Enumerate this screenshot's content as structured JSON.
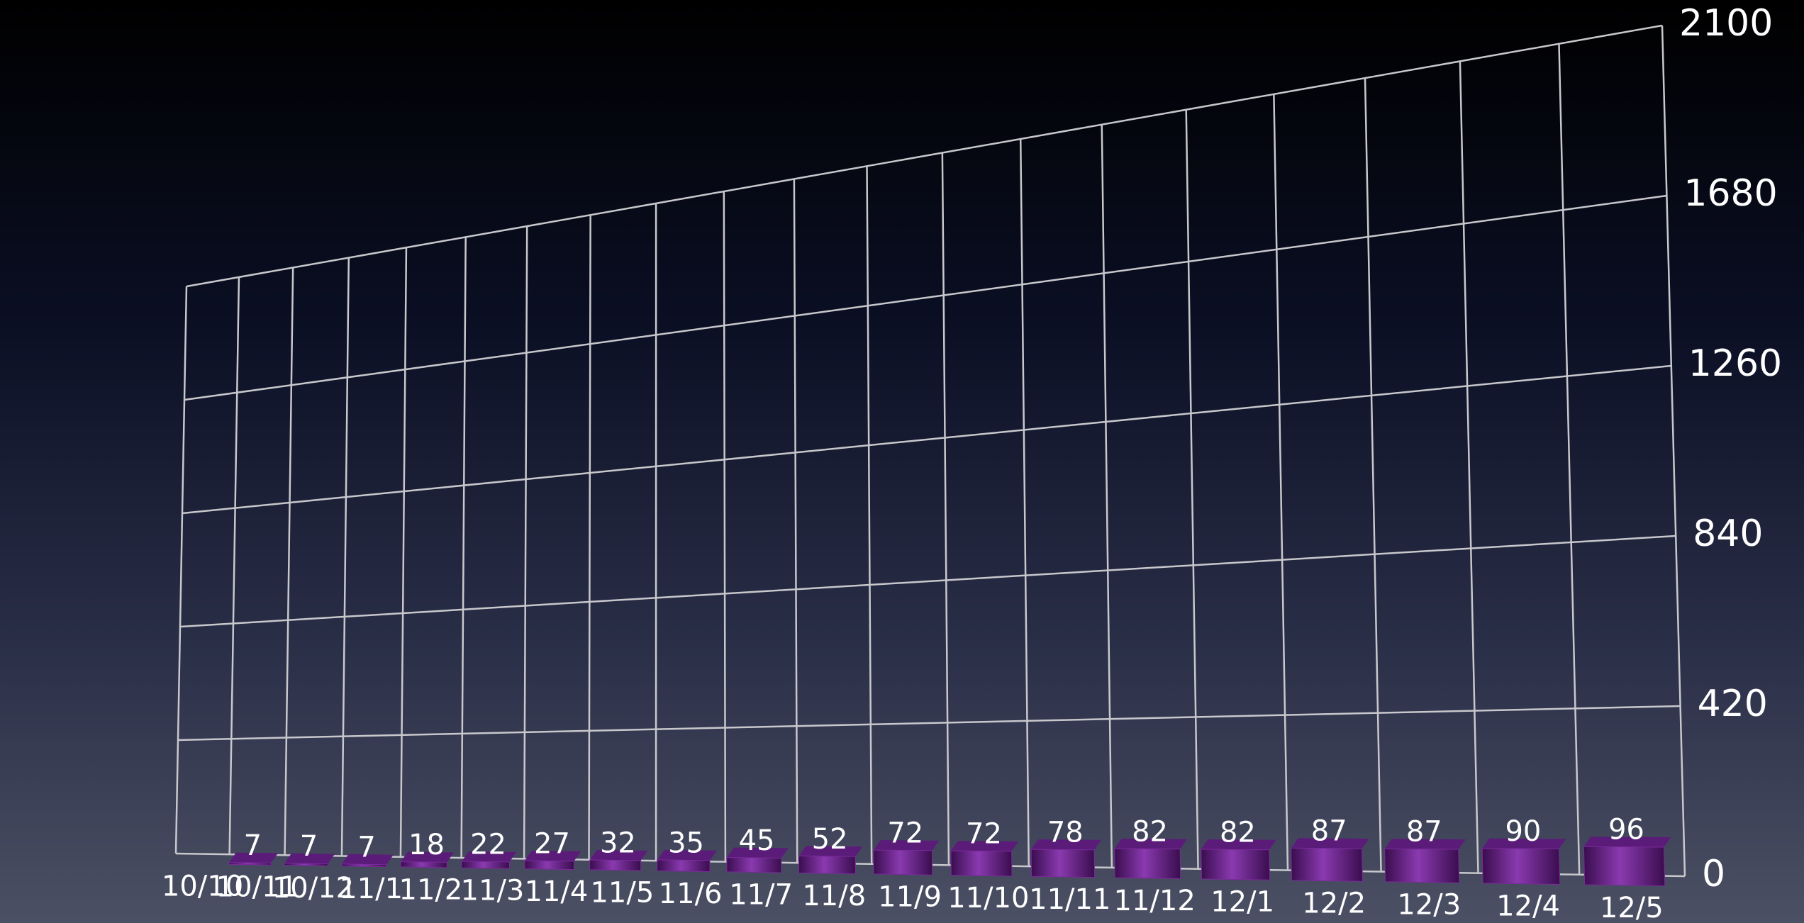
{
  "chart_data": {
    "type": "bar",
    "categories": [
      "10/10",
      "10/11",
      "10/12",
      "11/1",
      "11/2",
      "11/3",
      "11/4",
      "11/5",
      "11/6",
      "11/7",
      "11/8",
      "11/9",
      "11/10",
      "11/11",
      "11/12",
      "12/1",
      "12/2",
      "12/3",
      "12/4",
      "12/5"
    ],
    "values": [
      null,
      7,
      7,
      7,
      18,
      22,
      27,
      32,
      35,
      45,
      52,
      72,
      72,
      78,
      82,
      82,
      87,
      87,
      90,
      96
    ],
    "color": "#7a2a9a",
    "ylim": [
      0,
      2100
    ],
    "yticks": [
      0,
      420,
      840,
      1260,
      1680,
      2100
    ],
    "grid": true
  }
}
